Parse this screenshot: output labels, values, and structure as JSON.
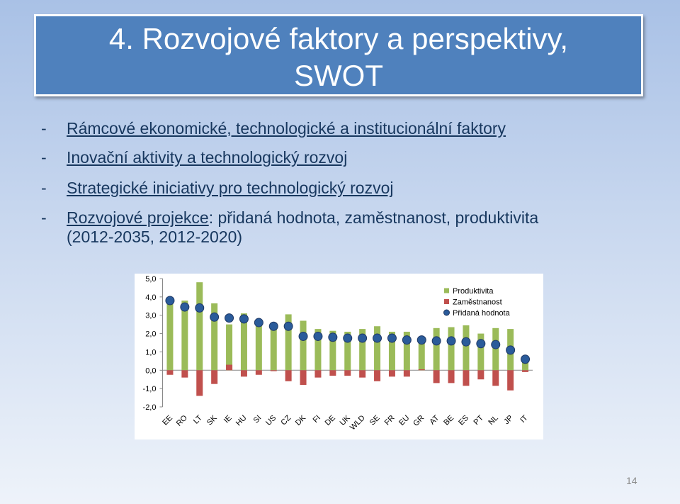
{
  "slide": {
    "title_lines": [
      "4. Rozvojové faktory a perspektivy,",
      "SWOT"
    ],
    "bullets": [
      {
        "dash": "-",
        "parts": [
          {
            "text": "Rámcové ekonomické, technologické a institucionální faktory",
            "link": true
          }
        ]
      },
      {
        "dash": "-",
        "parts": [
          {
            "text": "Inovační aktivity a technologický rozvoj",
            "link": true
          }
        ]
      },
      {
        "dash": "-",
        "parts": [
          {
            "text": "Strategické iniciativy pro technologický rozvoj",
            "link": true
          }
        ]
      },
      {
        "dash": "-",
        "parts": [
          {
            "text": "Rozvojové projekce",
            "link": true
          },
          {
            "text": ": přidaná hodnota, zaměstnanost, produktivita",
            "link": false
          }
        ],
        "continuation": "(2012-2035, 2012-2020)"
      }
    ],
    "page_number": "14"
  },
  "chart_data": {
    "type": "bar",
    "categories": [
      "EE",
      "RO",
      "LT",
      "SK",
      "IE",
      "HU",
      "SI",
      "US",
      "CZ",
      "DK",
      "FI",
      "DE",
      "UK",
      "WLD",
      "SE",
      "FR",
      "EU",
      "GR",
      "AT",
      "BE",
      "ES",
      "PT",
      "NL",
      "JP",
      "IT"
    ],
    "series": [
      {
        "name": "Produktivita",
        "type": "bar",
        "color": "#9bbb59",
        "values": [
          3.8,
          3.8,
          4.8,
          3.65,
          2.5,
          3.1,
          2.6,
          2.45,
          3.05,
          2.7,
          2.25,
          2.15,
          2.1,
          2.25,
          2.4,
          2.1,
          2.1,
          1.8,
          2.3,
          2.35,
          2.45,
          2.0,
          2.3,
          2.25,
          0.45
        ]
      },
      {
        "name": "Zaměstnanost",
        "type": "bar",
        "color": "#c0504d",
        "values": [
          -0.25,
          -0.4,
          -1.4,
          -0.75,
          0.3,
          -0.35,
          -0.25,
          -0.05,
          -0.6,
          -0.8,
          -0.4,
          -0.3,
          -0.3,
          -0.4,
          -0.6,
          -0.35,
          -0.35,
          0.05,
          -0.7,
          -0.7,
          -0.85,
          -0.5,
          -0.85,
          -1.1,
          -0.1
        ]
      },
      {
        "name": "Přidaná hodnota",
        "type": "marker",
        "color": "#2a5b9a",
        "values": [
          3.8,
          3.45,
          3.4,
          2.9,
          2.85,
          2.8,
          2.6,
          2.4,
          2.4,
          1.85,
          1.85,
          1.8,
          1.75,
          1.75,
          1.75,
          1.75,
          1.65,
          1.65,
          1.6,
          1.6,
          1.55,
          1.45,
          1.4,
          1.1,
          0.6
        ]
      }
    ],
    "ylim": [
      -2,
      5
    ],
    "yticks": [
      {
        "value": -2,
        "label": "-2,0"
      },
      {
        "value": -1,
        "label": "-1,0"
      },
      {
        "value": 0,
        "label": "0,0"
      },
      {
        "value": 1,
        "label": "1,0"
      },
      {
        "value": 2,
        "label": "2,0"
      },
      {
        "value": 3,
        "label": "3,0"
      },
      {
        "value": 4,
        "label": "4,0"
      },
      {
        "value": 5,
        "label": "5,0"
      }
    ],
    "grid": false,
    "legend": "top-right"
  }
}
